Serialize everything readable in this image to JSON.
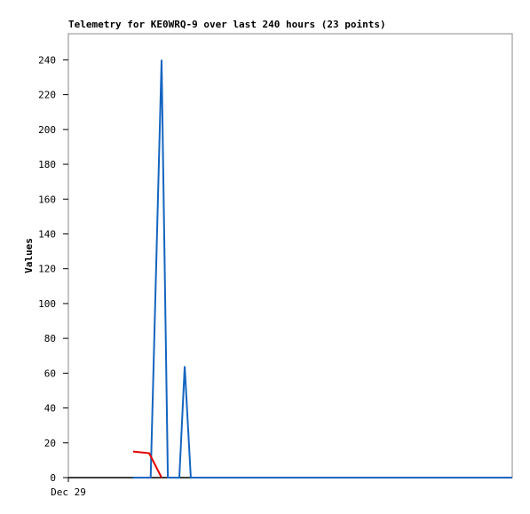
{
  "chart_data": {
    "type": "line",
    "title": "Telemetry for KE0WRQ-9 over last 240 hours (23 points)",
    "y_label": "Values",
    "xlim": [
      0,
      240
    ],
    "xticks": [
      {
        "value": 0,
        "label": "Dec 29"
      }
    ],
    "ylim": [
      0,
      255
    ],
    "yticks": [
      0,
      20,
      40,
      60,
      80,
      100,
      120,
      140,
      160,
      180,
      200,
      220,
      240
    ],
    "grid": false,
    "series": [
      {
        "color": "#1565c0",
        "x": [
          35,
          44.5,
          50.4,
          53.8,
          60,
          62.9,
          66.2,
          240
        ],
        "values": [
          0,
          0,
          240,
          0,
          0,
          64,
          0,
          0
        ]
      },
      {
        "color": "#e00000",
        "x": [
          35,
          43.7,
          50.4
        ],
        "values": [
          15,
          14,
          0
        ]
      }
    ]
  }
}
